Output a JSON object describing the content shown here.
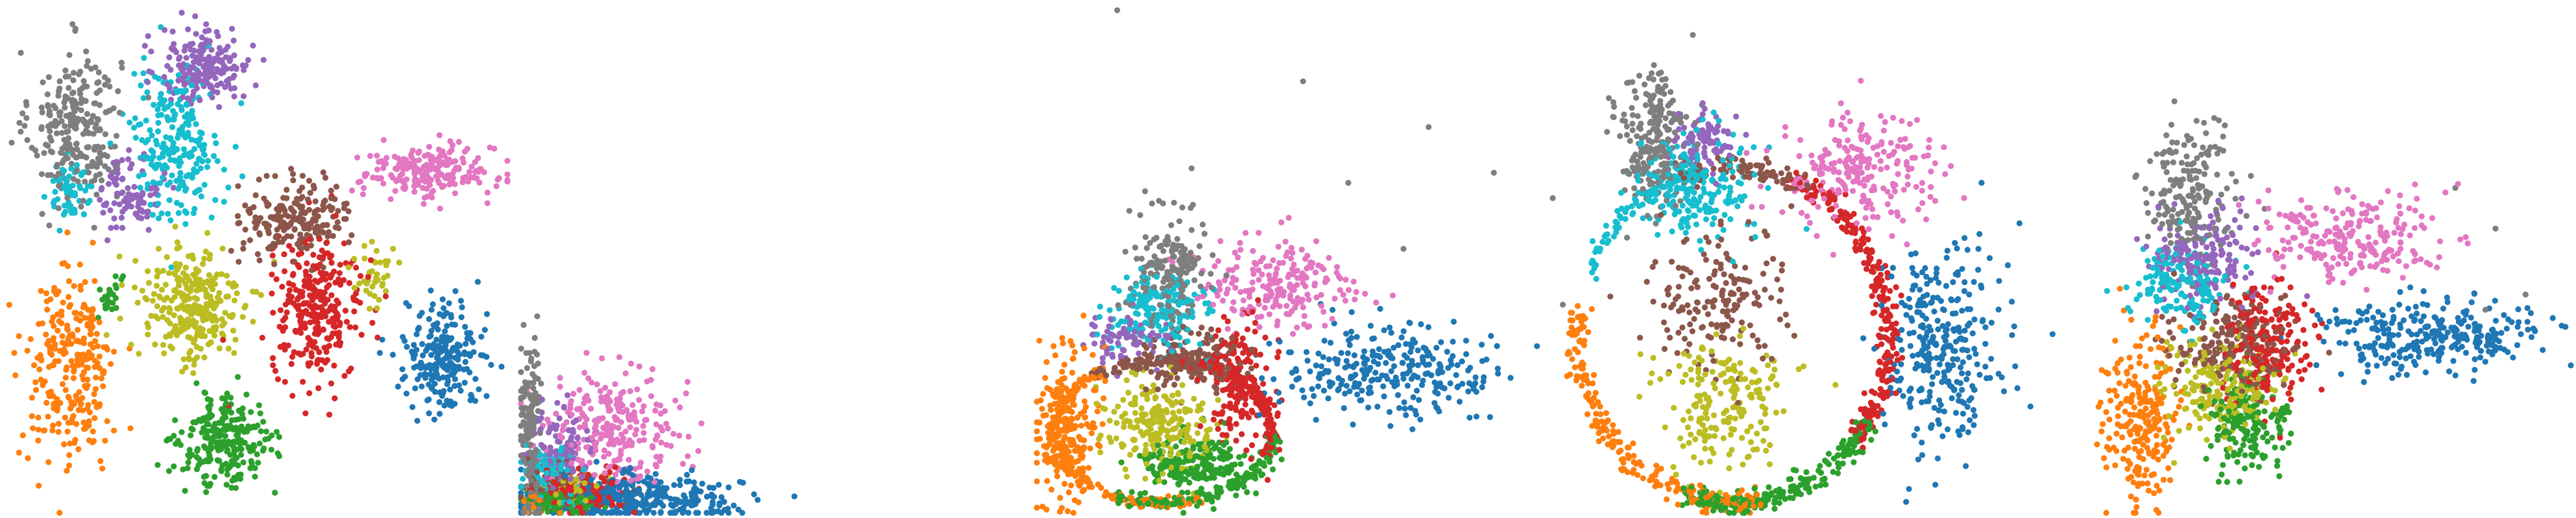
{
  "figure": {
    "title": "",
    "legend_visible": false,
    "axes_visible": false
  },
  "palette": {
    "blue": "#1f77b4",
    "orange": "#ff7f0e",
    "green": "#2ca02c",
    "red": "#d62728",
    "purple": "#9467bd",
    "brown": "#8c564b",
    "pink": "#e377c2",
    "gray": "#7f7f7f",
    "olive": "#bcbd22",
    "cyan": "#17becf"
  },
  "chart_data": [
    {
      "type": "scatter",
      "panel": 1,
      "title": "",
      "xlabel": "",
      "ylabel": "",
      "grid": false,
      "xlim": [
        0,
        100
      ],
      "ylim": [
        0,
        100
      ],
      "clusters": [
        {
          "name": "",
          "color": "#7f7f7f",
          "center": [
            14,
            76
          ],
          "spread": [
            6,
            10
          ],
          "count": 260
        },
        {
          "name": "",
          "color": "#9467bd",
          "center": [
            40,
            88
          ],
          "spread": [
            6,
            5
          ],
          "count": 200
        },
        {
          "name": "",
          "color": "#17becf",
          "center": [
            34,
            73
          ],
          "spread": [
            6,
            10
          ],
          "count": 240
        },
        {
          "name": "",
          "color": "#9467bd",
          "center": [
            25,
            63
          ],
          "spread": [
            4,
            5
          ],
          "count": 90
        },
        {
          "name": "",
          "color": "#17becf",
          "center": [
            13,
            64
          ],
          "spread": [
            3,
            4
          ],
          "count": 60
        },
        {
          "name": "",
          "color": "#e377c2",
          "center": [
            84,
            67
          ],
          "spread": [
            9,
            3.5
          ],
          "count": 210
        },
        {
          "name": "",
          "color": "#8c564b",
          "center": [
            58,
            58
          ],
          "spread": [
            7,
            5
          ],
          "count": 200
        },
        {
          "name": "",
          "color": "#d62728",
          "center": [
            62,
            40
          ],
          "spread": [
            6,
            9
          ],
          "count": 290
        },
        {
          "name": "",
          "color": "#bcbd22",
          "center": [
            37,
            41
          ],
          "spread": [
            7,
            8
          ],
          "count": 280
        },
        {
          "name": "",
          "color": "#ff7f0e",
          "center": [
            13,
            28
          ],
          "spread": [
            6,
            13
          ],
          "count": 270
        },
        {
          "name": "",
          "color": "#2ca02c",
          "center": [
            44,
            14
          ],
          "spread": [
            6,
            6
          ],
          "count": 250
        },
        {
          "name": "",
          "color": "#1f77b4",
          "center": [
            87,
            31
          ],
          "spread": [
            5,
            7
          ],
          "count": 230
        },
        {
          "name": "",
          "color": "#2ca02c",
          "center": [
            21,
            42
          ],
          "spread": [
            1.5,
            3
          ],
          "count": 25
        },
        {
          "name": "",
          "color": "#bcbd22",
          "center": [
            73,
            47
          ],
          "spread": [
            3,
            4
          ],
          "count": 40
        }
      ]
    },
    {
      "type": "scatter",
      "panel": 2,
      "title": "",
      "xlabel": "",
      "ylabel": "",
      "grid": false,
      "xlim": [
        0,
        100
      ],
      "ylim": [
        0,
        100
      ],
      "clusters": [
        {
          "name": "",
          "color": "#7f7f7f",
          "center": [
            2,
            15
          ],
          "spread": [
            1.5,
            12
          ],
          "count": 170
        },
        {
          "name": "",
          "color": "#e377c2",
          "center": [
            18,
            17
          ],
          "spread": [
            9,
            7
          ],
          "count": 260
        },
        {
          "name": "",
          "color": "#17becf",
          "center": [
            6,
            7
          ],
          "spread": [
            4,
            4
          ],
          "count": 130
        },
        {
          "name": "",
          "color": "#9467bd",
          "center": [
            8,
            12
          ],
          "spread": [
            4,
            5
          ],
          "count": 110
        },
        {
          "name": "",
          "color": "#d62728",
          "center": [
            12,
            4
          ],
          "spread": [
            6,
            2.5
          ],
          "count": 200
        },
        {
          "name": "",
          "color": "#1f77b4",
          "center": [
            22,
            3
          ],
          "spread": [
            14,
            3
          ],
          "count": 330
        },
        {
          "name": "",
          "color": "#2ca02c",
          "center": [
            8,
            2
          ],
          "spread": [
            5,
            1.5
          ],
          "count": 120
        },
        {
          "name": "",
          "color": "#ff7f0e",
          "center": [
            3,
            2
          ],
          "spread": [
            2,
            1.2
          ],
          "count": 60
        },
        {
          "name": "",
          "color": "#bcbd22",
          "center": [
            10,
            5
          ],
          "spread": [
            4,
            2
          ],
          "count": 70
        },
        {
          "name": "",
          "color": "#8c564b",
          "center": [
            7,
            5
          ],
          "spread": [
            4,
            3
          ],
          "count": 70
        }
      ]
    },
    {
      "type": "scatter",
      "panel": 3,
      "title": "",
      "xlabel": "",
      "ylabel": "",
      "grid": false,
      "xlim": [
        0,
        100
      ],
      "ylim": [
        0,
        100
      ],
      "clusters": [
        {
          "name": "",
          "color": "#7f7f7f",
          "center": [
            26,
            48
          ],
          "spread": [
            5,
            7
          ],
          "count": 180
        },
        {
          "name": "",
          "color": "#17becf",
          "center": [
            24,
            40
          ],
          "spread": [
            7,
            5
          ],
          "count": 170
        },
        {
          "name": "",
          "color": "#e377c2",
          "center": [
            48,
            45
          ],
          "spread": [
            10,
            6
          ],
          "count": 210
        },
        {
          "name": "",
          "color": "#1f77b4",
          "center": [
            70,
            28
          ],
          "spread": [
            15,
            6
          ],
          "count": 280
        },
        {
          "name": "",
          "color": "#9467bd",
          "center": [
            18,
            34
          ],
          "spread": [
            5,
            4
          ],
          "count": 80
        },
        {
          "name": "",
          "color": "#8c564b",
          "center": [
            30,
            30
          ],
          "spread": [
            8,
            4
          ],
          "count": 170
        },
        {
          "name": "",
          "color": "#d62728",
          "center": [
            40,
            26
          ],
          "spread": [
            4,
            8
          ],
          "count": 180
        },
        {
          "name": "",
          "color": "#bcbd22",
          "center": [
            25,
            17
          ],
          "spread": [
            7,
            6
          ],
          "count": 220
        },
        {
          "name": "",
          "color": "#2ca02c",
          "center": [
            32,
            9
          ],
          "spread": [
            8,
            4
          ],
          "count": 220
        },
        {
          "name": "",
          "color": "#ff7f0e",
          "center": [
            6,
            17
          ],
          "spread": [
            4,
            10
          ],
          "count": 230
        }
      ],
      "rings": [
        {
          "color": "#ff7f0e",
          "center": [
            25,
            16
          ],
          "radius": [
            22,
            14
          ],
          "count": 160,
          "from": 120,
          "to": 290
        },
        {
          "color": "#2ca02c",
          "center": [
            25,
            16
          ],
          "radius": [
            22,
            14
          ],
          "count": 140,
          "from": 240,
          "to": 360
        },
        {
          "color": "#d62728",
          "center": [
            25,
            16
          ],
          "radius": [
            22,
            14
          ],
          "count": 130,
          "from": -20,
          "to": 80
        },
        {
          "color": "#8c564b",
          "center": [
            25,
            16
          ],
          "radius": [
            22,
            14
          ],
          "count": 100,
          "from": 60,
          "to": 130
        }
      ],
      "outliers": [
        [
          16,
          99
        ],
        [
          53,
          85
        ],
        [
          78,
          76
        ],
        [
          62,
          65
        ],
        [
          91,
          67
        ],
        [
          73,
          52
        ]
      ]
    },
    {
      "type": "scatter",
      "panel": 4,
      "title": "",
      "xlabel": "",
      "ylabel": "",
      "grid": false,
      "xlim": [
        0,
        100
      ],
      "ylim": [
        0,
        100
      ],
      "clusters": [
        {
          "name": "",
          "color": "#7f7f7f",
          "center": [
            20,
            74
          ],
          "spread": [
            5,
            9
          ],
          "count": 220
        },
        {
          "name": "",
          "color": "#17becf",
          "center": [
            28,
            64
          ],
          "spread": [
            8,
            7
          ],
          "count": 200
        },
        {
          "name": "",
          "color": "#9467bd",
          "center": [
            30,
            73
          ],
          "spread": [
            4,
            4
          ],
          "count": 90
        },
        {
          "name": "",
          "color": "#e377c2",
          "center": [
            60,
            67
          ],
          "spread": [
            10,
            8
          ],
          "count": 230
        },
        {
          "name": "",
          "color": "#1f77b4",
          "center": [
            77,
            33
          ],
          "spread": [
            8,
            14
          ],
          "count": 300
        },
        {
          "name": "",
          "color": "#8c564b",
          "center": [
            32,
            42
          ],
          "spread": [
            9,
            10
          ],
          "count": 170
        },
        {
          "name": "",
          "color": "#bcbd22",
          "center": [
            34,
            22
          ],
          "spread": [
            9,
            9
          ],
          "count": 190
        }
      ],
      "rings": [
        {
          "color": "#ff7f0e",
          "center": [
            36,
            35
          ],
          "radius": [
            31,
            33
          ],
          "count": 220,
          "from": 170,
          "to": 280
        },
        {
          "color": "#2ca02c",
          "center": [
            36,
            35
          ],
          "radius": [
            31,
            33
          ],
          "count": 220,
          "from": 250,
          "to": 330
        },
        {
          "color": "#d62728",
          "center": [
            36,
            35
          ],
          "radius": [
            31,
            33
          ],
          "count": 260,
          "from": -40,
          "to": 70
        },
        {
          "color": "#8c564b",
          "center": [
            36,
            35
          ],
          "radius": [
            31,
            33
          ],
          "count": 90,
          "from": 60,
          "to": 110
        },
        {
          "color": "#17becf",
          "center": [
            36,
            35
          ],
          "radius": [
            31,
            33
          ],
          "count": 80,
          "from": 100,
          "to": 160
        }
      ],
      "outliers": [
        [
          0,
          62
        ],
        [
          12,
          78
        ],
        [
          2,
          41
        ]
      ]
    },
    {
      "type": "scatter",
      "panel": 5,
      "title": "",
      "xlabel": "",
      "ylabel": "",
      "grid": false,
      "xlim": [
        0,
        100
      ],
      "ylim": [
        0,
        100
      ],
      "clusters": [
        {
          "name": "",
          "color": "#7f7f7f",
          "center": [
            24,
            64
          ],
          "spread": [
            6,
            9
          ],
          "count": 190
        },
        {
          "name": "",
          "color": "#9467bd",
          "center": [
            27,
            50
          ],
          "spread": [
            7,
            6
          ],
          "count": 170
        },
        {
          "name": "",
          "color": "#17becf",
          "center": [
            22,
            45
          ],
          "spread": [
            6,
            5
          ],
          "count": 150
        },
        {
          "name": "",
          "color": "#e377c2",
          "center": [
            56,
            54
          ],
          "spread": [
            13,
            6
          ],
          "count": 230
        },
        {
          "name": "",
          "color": "#1f77b4",
          "center": [
            72,
            35
          ],
          "spread": [
            13,
            5
          ],
          "count": 280
        },
        {
          "name": "",
          "color": "#8c564b",
          "center": [
            33,
            33
          ],
          "spread": [
            8,
            6
          ],
          "count": 200
        },
        {
          "name": "",
          "color": "#d62728",
          "center": [
            40,
            33
          ],
          "spread": [
            6,
            8
          ],
          "count": 200
        },
        {
          "name": "",
          "color": "#bcbd22",
          "center": [
            30,
            25
          ],
          "spread": [
            7,
            6
          ],
          "count": 200
        },
        {
          "name": "",
          "color": "#2ca02c",
          "center": [
            36,
            17
          ],
          "spread": [
            5,
            6
          ],
          "count": 180
        },
        {
          "name": "",
          "color": "#ff7f0e",
          "center": [
            14,
            18
          ],
          "spread": [
            5,
            11
          ],
          "count": 230
        }
      ],
      "outliers": [
        [
          77,
          64
        ],
        [
          85,
          56
        ],
        [
          91,
          43
        ],
        [
          83,
          40
        ]
      ]
    }
  ]
}
